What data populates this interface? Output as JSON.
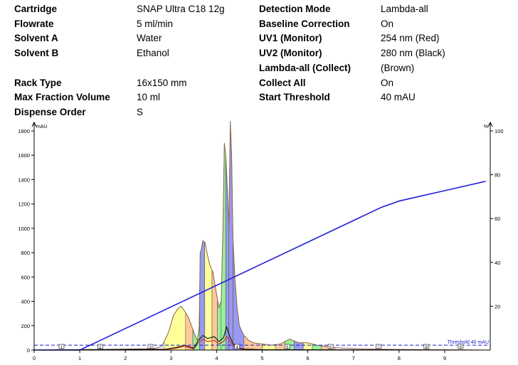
{
  "parameters_left": [
    {
      "label": "Cartridge",
      "value": "SNAP Ultra C18 12g"
    },
    {
      "label": "Flowrate",
      "value": "5 ml/min"
    },
    {
      "label": "Solvent A",
      "value": "Water"
    },
    {
      "label": "Solvent B",
      "value": "Ethanol"
    },
    {
      "label": "Rack Type",
      "value": "16x150 mm"
    },
    {
      "label": "Max Fraction Volume",
      "value": "10 ml"
    },
    {
      "label": "Dispense Order",
      "value": "S"
    }
  ],
  "parameters_right": [
    {
      "label": "Detection Mode",
      "value": "Lambda-all"
    },
    {
      "label": "Baseline Correction",
      "value": "On"
    },
    {
      "label": "UV1 (Monitor)",
      "value": "254 nm (Red)"
    },
    {
      "label": "UV2 (Monitor)",
      "value": "280 nm (Black)"
    },
    {
      "label": "Lambda-all (Collect)",
      "value": "(Brown)"
    },
    {
      "label": "Collect All",
      "value": "On"
    },
    {
      "label": "Start Threshold",
      "value": "40 mAU"
    }
  ],
  "chart_data": {
    "type": "area",
    "x_ticks": [
      0,
      1,
      2,
      3,
      4,
      5,
      6,
      7,
      8,
      9
    ],
    "xlim": [
      0,
      10
    ],
    "y_left_unit": "mAU",
    "y_left_ticks": [
      0,
      200,
      400,
      600,
      800,
      1000,
      1200,
      1400,
      1600,
      1800
    ],
    "ylim_left": [
      0,
      1800
    ],
    "y_right_unit": "%",
    "y_right_ticks": [
      20,
      40,
      60,
      80,
      100
    ],
    "ylim_right": [
      0,
      100
    ],
    "threshold": {
      "label": "Threshold 40 mAU",
      "value": 40
    },
    "colors": {
      "lambda_all": "#8a6a4a",
      "uv1": "#dd2222",
      "uv2": "#111111",
      "gradient": "#2222dd",
      "threshold": "#1a1acc",
      "fraction_palette": [
        "#ffff99",
        "#ffc899",
        "#99f099",
        "#9999f0"
      ]
    },
    "series": [
      {
        "name": "Lambda-all (Collect)",
        "x": [
          0,
          2.6,
          2.8,
          2.95,
          3.05,
          3.15,
          3.22,
          3.3,
          3.38,
          3.45,
          3.52,
          3.58,
          3.62,
          3.64,
          3.66,
          3.7,
          3.75,
          3.8,
          3.85,
          3.92,
          3.98,
          4.05,
          4.1,
          4.14,
          4.17,
          4.2,
          4.24,
          4.27,
          4.3,
          4.33,
          4.36,
          4.4,
          4.45,
          4.5,
          4.6,
          4.7,
          4.8,
          5.0,
          5.2,
          5.4,
          5.6,
          5.8,
          6.0,
          6.2,
          6.4,
          6.6,
          6.8,
          7.2,
          8.0,
          9.0,
          9.9
        ],
        "values": [
          0,
          10,
          30,
          150,
          280,
          340,
          360,
          320,
          270,
          200,
          130,
          80,
          200,
          800,
          820,
          900,
          880,
          780,
          700,
          640,
          500,
          350,
          400,
          1000,
          1700,
          1600,
          1300,
          1000,
          1880,
          1600,
          900,
          600,
          350,
          200,
          120,
          80,
          60,
          50,
          40,
          50,
          90,
          60,
          60,
          40,
          30,
          20,
          15,
          10,
          5,
          2,
          0
        ]
      },
      {
        "name": "UV1 (Monitor)",
        "x": [
          0,
          2.9,
          3.1,
          3.3,
          3.5,
          3.6,
          3.7,
          3.8,
          3.95,
          4.05,
          4.15,
          4.22,
          4.28,
          4.35,
          4.45,
          4.6,
          5.0,
          9.9
        ],
        "values": [
          0,
          5,
          15,
          30,
          10,
          60,
          90,
          70,
          80,
          50,
          70,
          110,
          80,
          40,
          15,
          5,
          2,
          0
        ]
      },
      {
        "name": "UV2 (Monitor)",
        "x": [
          0,
          2.9,
          3.1,
          3.3,
          3.5,
          3.6,
          3.7,
          3.8,
          3.95,
          4.05,
          4.15,
          4.22,
          4.28,
          4.35,
          4.45,
          4.6,
          5.0,
          9.9
        ],
        "values": [
          0,
          8,
          20,
          40,
          15,
          80,
          120,
          95,
          110,
          70,
          100,
          190,
          120,
          60,
          20,
          8,
          3,
          0
        ]
      },
      {
        "name": "Gradient",
        "axis": "right",
        "x": [
          0,
          1.0,
          7.6,
          8.0,
          9.9
        ],
        "values": [
          0,
          0,
          65,
          68,
          77
        ]
      }
    ],
    "fraction_bands": [
      {
        "start": 2.85,
        "end": 3.32,
        "color": "#ffff99"
      },
      {
        "start": 3.32,
        "end": 3.48,
        "color": "#ffc899"
      },
      {
        "start": 3.48,
        "end": 3.63,
        "color": "#99f099"
      },
      {
        "start": 3.63,
        "end": 3.74,
        "color": "#9999f0"
      },
      {
        "start": 3.74,
        "end": 3.9,
        "color": "#ffff99"
      },
      {
        "start": 3.9,
        "end": 4.02,
        "color": "#ffc899"
      },
      {
        "start": 4.02,
        "end": 4.1,
        "color": "#99f099"
      },
      {
        "start": 4.1,
        "end": 4.2,
        "color": "#99f099"
      },
      {
        "start": 4.2,
        "end": 4.27,
        "color": "#9999f0"
      },
      {
        "start": 4.27,
        "end": 4.36,
        "color": "#9999f0"
      },
      {
        "start": 4.36,
        "end": 4.6,
        "color": "#9999f0"
      },
      {
        "start": 4.6,
        "end": 5.0,
        "color": "#ffc899"
      },
      {
        "start": 5.0,
        "end": 5.3,
        "color": "#ffff99"
      },
      {
        "start": 5.3,
        "end": 5.5,
        "color": "#ffc899"
      },
      {
        "start": 5.5,
        "end": 5.7,
        "color": "#99f099"
      },
      {
        "start": 5.7,
        "end": 5.9,
        "color": "#9999f0"
      },
      {
        "start": 5.9,
        "end": 6.1,
        "color": "#ffff99"
      },
      {
        "start": 6.1,
        "end": 6.3,
        "color": "#99f099"
      },
      {
        "start": 6.3,
        "end": 6.6,
        "color": "#ffc899"
      }
    ],
    "rack_markers": [
      {
        "x": 0.6,
        "label": "1"
      },
      {
        "x": 1.45,
        "label": "2"
      },
      {
        "x": 2.55,
        "label": "3"
      },
      {
        "x": 4.45,
        "label": "4"
      },
      {
        "x": 5.55,
        "label": "5"
      },
      {
        "x": 6.5,
        "label": "6"
      },
      {
        "x": 7.55,
        "label": "7"
      },
      {
        "x": 8.6,
        "label": "8"
      },
      {
        "x": 9.35,
        "label": "9"
      }
    ]
  }
}
